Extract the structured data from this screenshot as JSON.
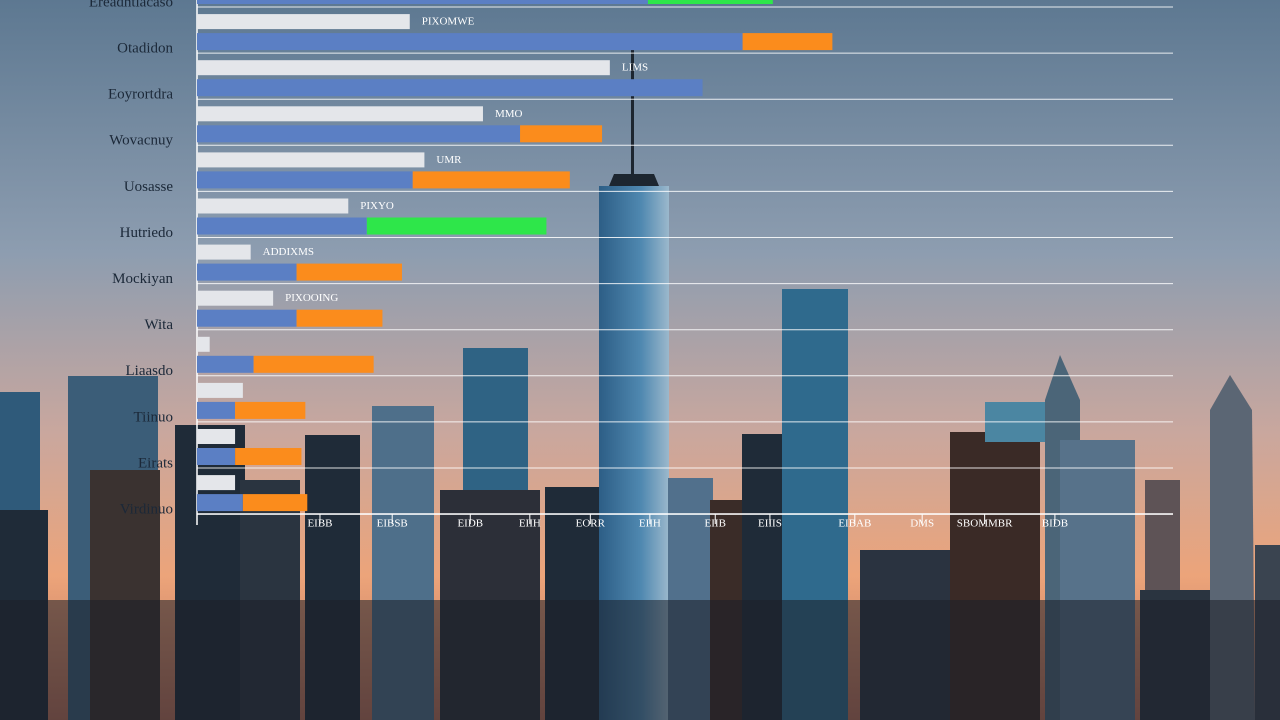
{
  "chart_data": {
    "type": "bar",
    "categories": [
      "Ereadhtiacaso",
      "Otadidon",
      "Eoyrortdra",
      "Wovacnuy",
      "Uosasse",
      "Hutriedo",
      "Mockiyan",
      "Wita",
      "Liaasdo",
      "Tiinuo",
      "Eirats",
      "Virdinuo"
    ],
    "series": [
      {
        "color": "#e4e6ea",
        "values": [
          null,
          21.8,
          42.3,
          29.3,
          23.3,
          15.5,
          5.5,
          7.8,
          1.3,
          4.7,
          3.9,
          3.9
        ],
        "annotations": [
          null,
          "PIXOMWE",
          "LIMS",
          "MMO",
          "UMR",
          "PIXYO",
          "ADDIXMS",
          "PIXOOING",
          null,
          null,
          null,
          null
        ]
      },
      {
        "color": "#5b7fc4",
        "values": [
          46.2,
          55.9,
          51.8,
          33.1,
          22.1,
          17.4,
          10.2,
          10.2,
          5.8,
          3.9,
          3.9,
          4.7
        ]
      },
      {
        "colors": [
          "#2ee64a",
          "#fb8c1c",
          "#fb8c1c",
          "#fb8c1c",
          "#fb8c1c",
          "#2ee64a",
          "#fb8c1c",
          "#fb8c1c",
          "#fb8c1c",
          "#fb8c1c",
          "#fb8c1c",
          "#fb8c1c"
        ],
        "values": [
          12.8,
          9.2,
          null,
          8.4,
          16.1,
          18.4,
          10.8,
          8.8,
          12.3,
          7.2,
          6.8,
          6.6
        ]
      }
    ],
    "xlim": [
      0,
      100
    ],
    "xticks": [
      {
        "value": 12.6,
        "label": "EIBB"
      },
      {
        "value": 20,
        "label": "EIBSB"
      },
      {
        "value": 28,
        "label": "EIDB"
      },
      {
        "value": 34.1,
        "label": "EIIH"
      },
      {
        "value": 40.3,
        "label": "EORR"
      },
      {
        "value": 46.4,
        "label": "EIIH"
      },
      {
        "value": 53.1,
        "label": "EIIB"
      },
      {
        "value": 58.7,
        "label": "EIIIS"
      },
      {
        "value": 67.4,
        "label": "EIBAB"
      },
      {
        "value": 74.3,
        "label": "DMS"
      },
      {
        "value": 80.7,
        "label": "SBOMMBR"
      },
      {
        "value": 87.9,
        "label": "BIDB"
      }
    ],
    "grid": true
  }
}
